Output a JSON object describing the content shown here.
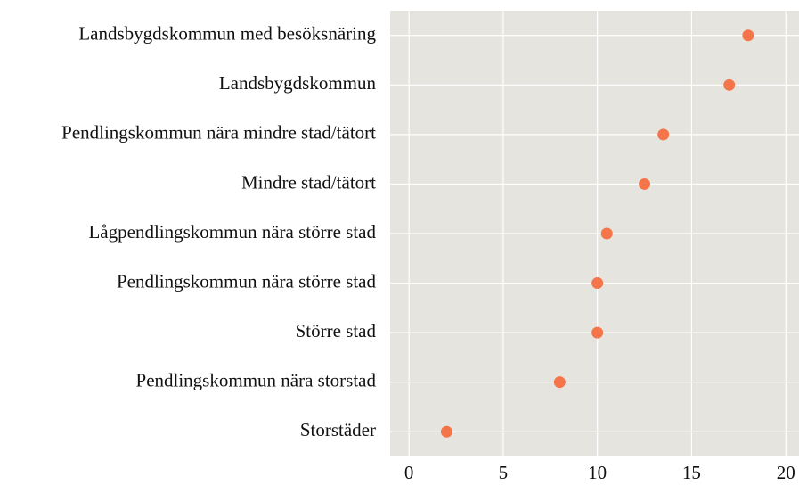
{
  "chart_data": {
    "type": "dot",
    "categories": [
      "Landsbygdskommun med besöksnäring",
      "Landsbygdskommun",
      "Pendlingskommun nära mindre stad/tätort",
      "Mindre stad/tätort",
      "Lågpendlingskommun nära större stad",
      "Pendlingskommun nära större stad",
      "Större stad",
      "Pendlingskommun nära storstad",
      "Storstäder"
    ],
    "values": [
      18.0,
      17.0,
      13.5,
      12.5,
      10.5,
      10.0,
      10.0,
      8.0,
      2.0
    ],
    "color": "#f4754a",
    "xlim": [
      -1,
      20.7
    ],
    "xticks": [
      0,
      5,
      10,
      15,
      20
    ],
    "grid": true,
    "background": "#e6e4df"
  }
}
